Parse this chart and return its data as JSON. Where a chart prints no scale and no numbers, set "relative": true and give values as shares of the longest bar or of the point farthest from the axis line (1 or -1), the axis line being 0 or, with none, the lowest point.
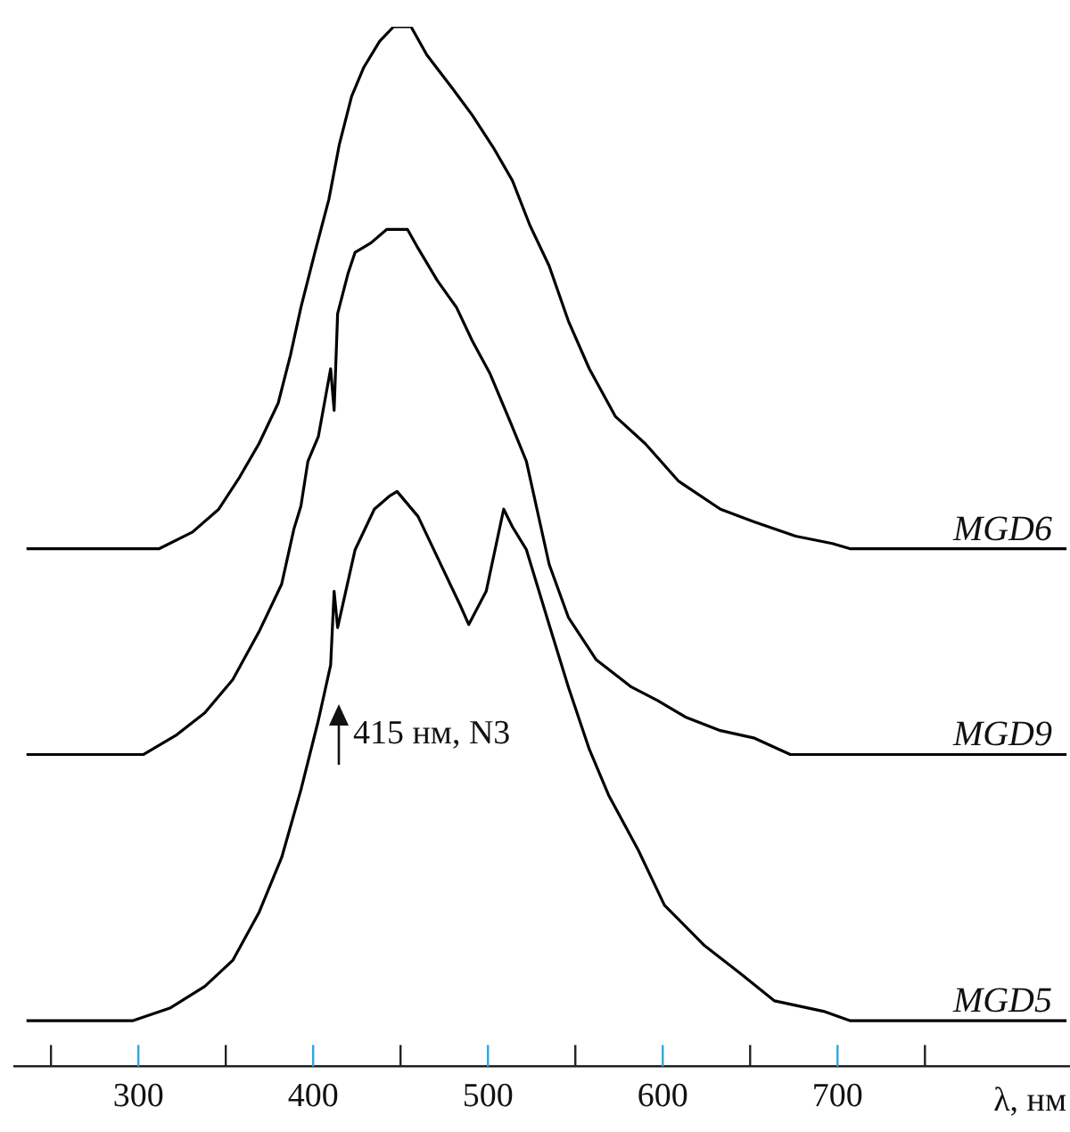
{
  "chart_data": {
    "type": "line",
    "relative": true,
    "xlabel": "λ, нм",
    "xlim": [
      229,
      833
    ],
    "xticks": [
      {
        "value": 250,
        "label": null
      },
      300,
      {
        "value": 350,
        "label": null
      },
      400,
      {
        "value": 450,
        "label": null
      },
      500,
      {
        "value": 550,
        "label": null
      },
      600,
      {
        "value": 650,
        "label": null
      },
      700,
      {
        "value": 750,
        "label": null
      }
    ],
    "tick_labels": "x",
    "grid": false,
    "legend": false,
    "marker": "none",
    "line_style": "solid",
    "annotations": [
      "415 нм, N3"
    ],
    "series": [
      {
        "name": "MGD6",
        "color": "#000000",
        "x": [
          236,
          312,
          331,
          346,
          358,
          369,
          380,
          387,
          393,
          401,
          409,
          415,
          422,
          429,
          438,
          446,
          456,
          465,
          480,
          491,
          503,
          514,
          524,
          535,
          546,
          558,
          573,
          590,
          609,
          633,
          652,
          676,
          697,
          707,
          831
        ],
        "values": [
          0.498,
          0.498,
          0.514,
          0.536,
          0.567,
          0.599,
          0.638,
          0.684,
          0.73,
          0.783,
          0.834,
          0.887,
          0.933,
          0.961,
          0.986,
          1,
          1,
          0.973,
          0.94,
          0.915,
          0.884,
          0.852,
          0.809,
          0.77,
          0.717,
          0.671,
          0.625,
          0.599,
          0.563,
          0.536,
          0.524,
          0.51,
          0.503,
          0.498,
          0.498
        ]
      },
      {
        "name": "MGD9",
        "color": "#000000",
        "x": [
          236,
          303,
          322,
          338,
          354,
          369,
          382,
          389,
          393,
          397,
          403,
          410,
          412,
          414,
          420,
          424,
          433,
          442,
          454,
          460,
          471,
          482,
          491,
          501,
          513,
          522,
          535,
          546,
          562,
          582,
          597,
          613,
          633,
          652,
          673,
          831
        ],
        "values": [
          0.3,
          0.3,
          0.319,
          0.34,
          0.372,
          0.418,
          0.464,
          0.517,
          0.539,
          0.582,
          0.606,
          0.671,
          0.631,
          0.724,
          0.763,
          0.783,
          0.792,
          0.805,
          0.805,
          0.787,
          0.756,
          0.73,
          0.698,
          0.667,
          0.619,
          0.582,
          0.483,
          0.432,
          0.391,
          0.365,
          0.352,
          0.336,
          0.323,
          0.316,
          0.3,
          0.3
        ]
      },
      {
        "name": "MGD5",
        "color": "#000000",
        "x": [
          236,
          297,
          318,
          338,
          354,
          369,
          382,
          393,
          403,
          410,
          412,
          414,
          424,
          435,
          444,
          448,
          460,
          471,
          484,
          489,
          499,
          509,
          514,
          522,
          535,
          546,
          558,
          569,
          586,
          601,
          624,
          644,
          664,
          692,
          707,
          831
        ],
        "values": [
          0.044,
          0.044,
          0.056,
          0.077,
          0.102,
          0.148,
          0.201,
          0.266,
          0.333,
          0.386,
          0.457,
          0.422,
          0.497,
          0.536,
          0.549,
          0.553,
          0.529,
          0.49,
          0.444,
          0.425,
          0.457,
          0.536,
          0.519,
          0.497,
          0.425,
          0.365,
          0.305,
          0.261,
          0.208,
          0.155,
          0.116,
          0.09,
          0.063,
          0.053,
          0.044,
          0.044
        ]
      }
    ]
  }
}
